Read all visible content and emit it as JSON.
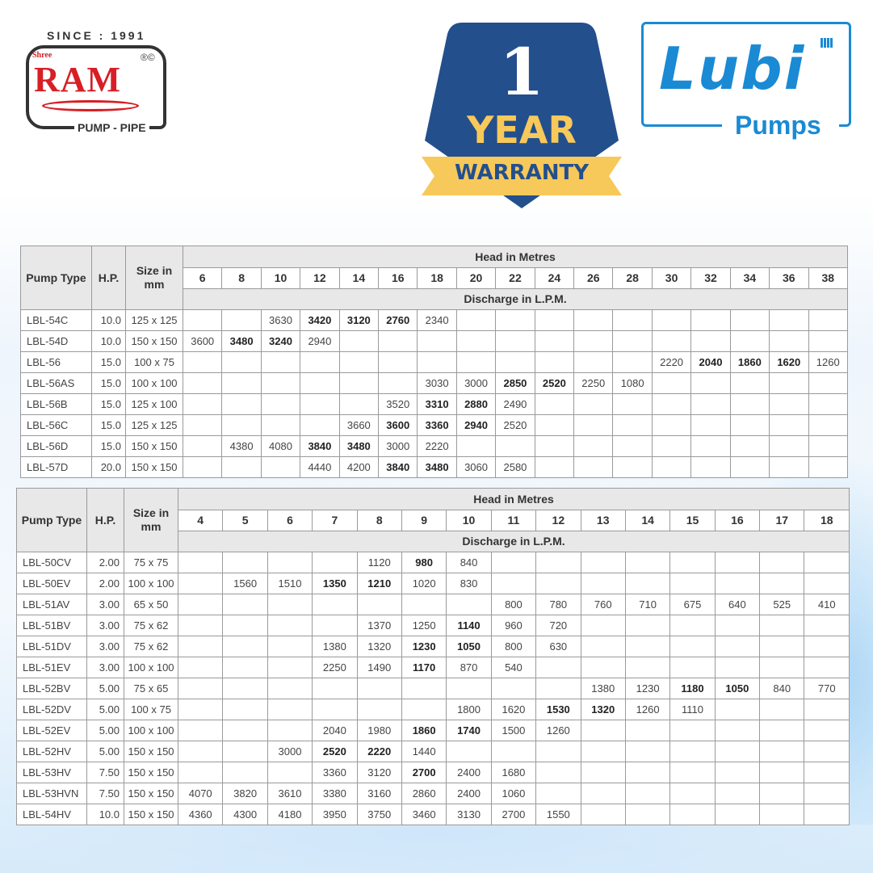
{
  "logos": {
    "ram": {
      "since": "SINCE : 1991",
      "shree": "Shree",
      "name": "RAM",
      "reg": "®©",
      "tagline": "PUMP - PIPE",
      "color": "#d71f26"
    },
    "warranty": {
      "number": "1",
      "year": "YEAR",
      "label": "WARRANTY",
      "badge_color": "#234f8d",
      "ribbon_color": "#f7c85a"
    },
    "lubi": {
      "name": "Lubi",
      "sub": "Pumps",
      "color": "#1a8ad4"
    }
  },
  "tables": [
    {
      "headers": {
        "pump_type": "Pump Type",
        "hp": "H.P.",
        "size": "Size in mm",
        "head": "Head in Metres",
        "discharge": "Discharge in L.P.M."
      },
      "heads": [
        "6",
        "8",
        "10",
        "12",
        "14",
        "16",
        "18",
        "20",
        "22",
        "24",
        "26",
        "28",
        "30",
        "32",
        "34",
        "36",
        "38"
      ],
      "rows": [
        {
          "type": "LBL-54C",
          "hp": "10.0",
          "size": "125 x 125",
          "values": {
            "10": "3630",
            "12": "3420",
            "14": "3120",
            "16": "2760",
            "18": "2340"
          },
          "bold": [
            "12",
            "14",
            "16"
          ]
        },
        {
          "type": "LBL-54D",
          "hp": "10.0",
          "size": "150 x 150",
          "values": {
            "6": "3600",
            "8": "3480",
            "10": "3240",
            "12": "2940"
          },
          "bold": [
            "8",
            "10"
          ]
        },
        {
          "type": "LBL-56",
          "hp": "15.0",
          "size": "100 x 75",
          "values": {
            "30": "2220",
            "32": "2040",
            "34": "1860",
            "36": "1620",
            "38": "1260"
          },
          "bold": [
            "32",
            "34",
            "36"
          ]
        },
        {
          "type": "LBL-56AS",
          "hp": "15.0",
          "size": "100 x 100",
          "values": {
            "18": "3030",
            "20": "3000",
            "22": "2850",
            "24": "2520",
            "26": "2250",
            "28": "1080"
          },
          "bold": [
            "22",
            "24"
          ]
        },
        {
          "type": "LBL-56B",
          "hp": "15.0",
          "size": "125 x 100",
          "values": {
            "16": "3520",
            "18": "3310",
            "20": "2880",
            "22": "2490"
          },
          "bold": [
            "18",
            "20"
          ]
        },
        {
          "type": "LBL-56C",
          "hp": "15.0",
          "size": "125 x 125",
          "values": {
            "14": "3660",
            "16": "3600",
            "18": "3360",
            "20": "2940",
            "22": "2520"
          },
          "bold": [
            "16",
            "18",
            "20"
          ]
        },
        {
          "type": "LBL-56D",
          "hp": "15.0",
          "size": "150 x 150",
          "values": {
            "8": "4380",
            "10": "4080",
            "12": "3840",
            "14": "3480",
            "16": "3000",
            "18": "2220"
          },
          "bold": [
            "12",
            "14"
          ]
        },
        {
          "type": "LBL-57D",
          "hp": "20.0",
          "size": "150 x 150",
          "values": {
            "12": "4440",
            "14": "4200",
            "16": "3840",
            "18": "3480",
            "20": "3060",
            "22": "2580"
          },
          "bold": [
            "16",
            "18"
          ]
        }
      ]
    },
    {
      "headers": {
        "pump_type": "Pump Type",
        "hp": "H.P.",
        "size": "Size in mm",
        "head": "Head in Metres",
        "discharge": "Discharge in L.P.M."
      },
      "heads": [
        "4",
        "5",
        "6",
        "7",
        "8",
        "9",
        "10",
        "11",
        "12",
        "13",
        "14",
        "15",
        "16",
        "17",
        "18"
      ],
      "rows": [
        {
          "type": "LBL-50CV",
          "hp": "2.00",
          "size": "75 x 75",
          "values": {
            "8": "1120",
            "9": "980",
            "10": "840"
          },
          "bold": [
            "9"
          ]
        },
        {
          "type": "LBL-50EV",
          "hp": "2.00",
          "size": "100 x 100",
          "values": {
            "5": "1560",
            "6": "1510",
            "7": "1350",
            "8": "1210",
            "9": "1020",
            "10": "830"
          },
          "bold": [
            "7",
            "8"
          ]
        },
        {
          "type": "LBL-51AV",
          "hp": "3.00",
          "size": "65 x 50",
          "values": {
            "11": "800",
            "12": "780",
            "13": "760",
            "14": "710",
            "15": "675",
            "16": "640",
            "17": "525",
            "18": "410"
          },
          "bold": []
        },
        {
          "type": "LBL-51BV",
          "hp": "3.00",
          "size": "75 x 62",
          "values": {
            "8": "1370",
            "9": "1250",
            "10": "1140",
            "11": "960",
            "12": "720"
          },
          "bold": [
            "10"
          ]
        },
        {
          "type": "LBL-51DV",
          "hp": "3.00",
          "size": "75 x 62",
          "values": {
            "7": "1380",
            "8": "1320",
            "9": "1230",
            "10": "1050",
            "11": "800",
            "12": "630"
          },
          "bold": [
            "9",
            "10"
          ]
        },
        {
          "type": "LBL-51EV",
          "hp": "3.00",
          "size": "100 x 100",
          "values": {
            "7": "2250",
            "8": "1490",
            "9": "1170",
            "10": "870",
            "11": "540"
          },
          "bold": [
            "9"
          ]
        },
        {
          "type": "LBL-52BV",
          "hp": "5.00",
          "size": "75 x 65",
          "values": {
            "13": "1380",
            "14": "1230",
            "15": "1180",
            "16": "1050",
            "17": "840",
            "18": "770"
          },
          "bold": [
            "15",
            "16"
          ]
        },
        {
          "type": "LBL-52DV",
          "hp": "5.00",
          "size": "100 x 75",
          "values": {
            "10": "1800",
            "11": "1620",
            "12": "1530",
            "13": "1320",
            "14": "1260",
            "15": "1110"
          },
          "bold": [
            "12",
            "13"
          ]
        },
        {
          "type": "LBL-52EV",
          "hp": "5.00",
          "size": "100 x 100",
          "values": {
            "7": "2040",
            "8": "1980",
            "9": "1860",
            "10": "1740",
            "11": "1500",
            "12": "1260"
          },
          "bold": [
            "9",
            "10"
          ]
        },
        {
          "type": "LBL-52HV",
          "hp": "5.00",
          "size": "150 x 150",
          "values": {
            "6": "3000",
            "7": "2520",
            "8": "2220",
            "9": "1440"
          },
          "bold": [
            "7",
            "8"
          ]
        },
        {
          "type": "LBL-53HV",
          "hp": "7.50",
          "size": "150 x 150",
          "values": {
            "7": "3360",
            "8": "3120",
            "9": "2700",
            "10": "2400",
            "11": "1680"
          },
          "bold": [
            "9"
          ]
        },
        {
          "type": "LBL-53HVN",
          "hp": "7.50",
          "size": "150 x 150",
          "values": {
            "4": "4070",
            "5": "3820",
            "6": "3610",
            "7": "3380",
            "8": "3160",
            "9": "2860",
            "10": "2400",
            "11": "1060"
          },
          "bold": []
        },
        {
          "type": "LBL-54HV",
          "hp": "10.0",
          "size": "150 x 150",
          "values": {
            "4": "4360",
            "5": "4300",
            "6": "4180",
            "7": "3950",
            "8": "3750",
            "9": "3460",
            "10": "3130",
            "11": "2700",
            "12": "1550"
          },
          "bold": []
        }
      ]
    }
  ]
}
